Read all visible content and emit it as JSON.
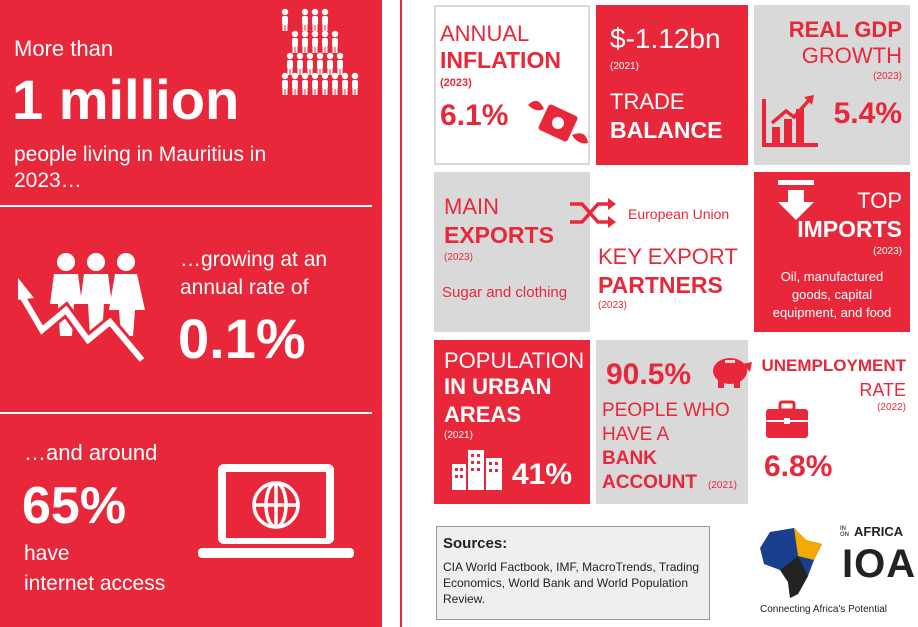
{
  "left": {
    "pop_intro": "More than",
    "pop_value": "1 million",
    "pop_desc": "people living in Mauritius in 2023…",
    "growth_text": "…growing at an annual rate of",
    "growth_value": "0.1%",
    "internet_intro": "…and around",
    "internet_value": "65%",
    "internet_desc_1": "have",
    "internet_desc_2": "internet access"
  },
  "tiles": {
    "inflation": {
      "line1": "ANNUAL",
      "line2": "INFLATION",
      "year": "(2023)",
      "value": "6.1%"
    },
    "trade": {
      "value": "$-1.12bn",
      "year": "(2021)",
      "line1": "TRADE",
      "line2": "BALANCE"
    },
    "gdp": {
      "line1": "REAL GDP",
      "line2": "GROWTH",
      "year": "(2023)",
      "value": "5.4%"
    },
    "exports": {
      "line1": "MAIN",
      "line2": "EXPORTS",
      "year": "(2023)",
      "items": "Sugar and clothing"
    },
    "partners": {
      "partner": "European Union",
      "line1": "KEY EXPORT",
      "line2": "PARTNERS",
      "year": "(2023)"
    },
    "imports": {
      "line1": "TOP",
      "line2": "IMPORTS",
      "year": "(2023)",
      "items": "Oil, manufactured goods, capital equipment, and food"
    },
    "urban": {
      "line1": "POPULATION",
      "line2": "IN URBAN",
      "line3": "AREAS",
      "year": "(2021)",
      "value": "41%"
    },
    "bank": {
      "value": "90.5%",
      "line1": "PEOPLE WHO",
      "line2": "HAVE A",
      "line3": "BANK",
      "line4": "ACCOUNT",
      "year": "(2021)"
    },
    "unemployment": {
      "line1": "UNEMPLOYMENT",
      "line2": "RATE",
      "year": "(2022)",
      "value": "6.8%"
    }
  },
  "sources": {
    "title": "Sources:",
    "text": "CIA World Factbook, IMF, MacroTrends, Trading Economics, World Bank and World Population Review."
  },
  "logo": {
    "brand_top": "IN ON",
    "brand_word": "AFRICA",
    "letters": "IOA",
    "tagline": "Connecting Africa's Potential"
  },
  "colors": {
    "accent": "#e8283a",
    "grey": "#d9d9d9"
  }
}
